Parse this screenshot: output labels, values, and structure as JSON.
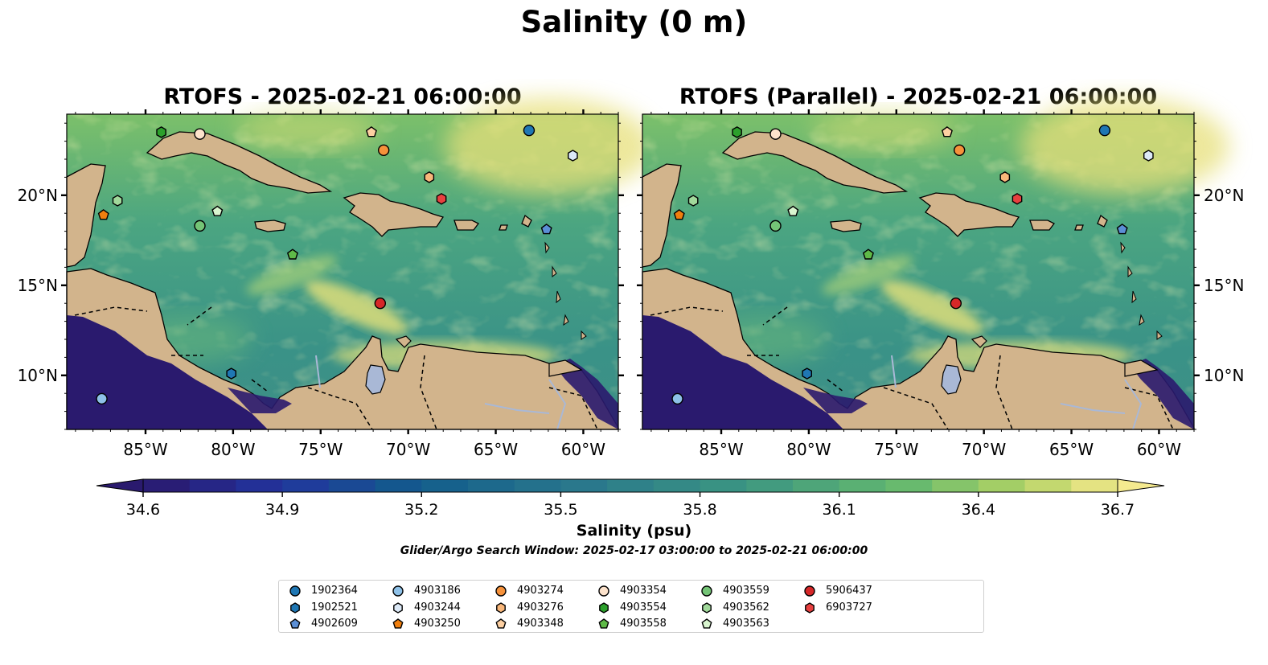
{
  "figure": {
    "title": "Salinity (0 m)",
    "panels": [
      {
        "title": "RTOFS - 2025-02-21 06:00:00"
      },
      {
        "title": "RTOFS (Parallel) - 2025-02-21 06:00:00"
      }
    ],
    "x_ticks": [
      "85°W",
      "80°W",
      "75°W",
      "70°W",
      "65°W",
      "60°W"
    ],
    "y_ticks": [
      "20°N",
      "15°N",
      "10°N"
    ],
    "colorbar": {
      "ticks": [
        "34.6",
        "34.9",
        "35.2",
        "35.5",
        "35.8",
        "36.1",
        "36.4",
        "36.7"
      ],
      "label": "Salinity (psu)",
      "subtitle": "Glider/Argo Search Window: 2025-02-17 03:00:00 to 2025-02-21 06:00:00"
    },
    "colors": {
      "land": "#d2b48c",
      "ocean_mid": "#3f9b86",
      "ocean_salty": "#f0e68c",
      "ocean_fresh": "#2a1a6e",
      "rivers": "#a9b8d6"
    }
  },
  "chart_data": {
    "type": "scatter",
    "map_type": "salinity contour map",
    "xlim": [
      -89.5,
      -58.0
    ],
    "ylim": [
      7.0,
      24.5
    ],
    "colorbar_range": [
      34.6,
      36.7
    ],
    "colorbar_step": 0.1,
    "colormap": "haline",
    "series": [
      {
        "name": "1902364",
        "marker": "circle",
        "color": "#1f77b4",
        "x": -63.1,
        "y": 23.6
      },
      {
        "name": "1902521",
        "marker": "hexagon",
        "color": "#1f77b4",
        "x": -80.1,
        "y": 10.1
      },
      {
        "name": "4902609",
        "marker": "pentagon",
        "color": "#5b8fd6",
        "x": -62.1,
        "y": 18.1
      },
      {
        "name": "4903186",
        "marker": "circle",
        "color": "#8ec1e8",
        "x": -87.5,
        "y": 8.7
      },
      {
        "name": "4903244",
        "marker": "hexagon",
        "color": "#dce9f7",
        "x": -60.6,
        "y": 22.2
      },
      {
        "name": "4903250",
        "marker": "pentagon",
        "color": "#f07f0e",
        "x": -87.4,
        "y": 18.9
      },
      {
        "name": "4903274",
        "marker": "circle",
        "color": "#f6923b",
        "x": -71.4,
        "y": 22.5
      },
      {
        "name": "4903276",
        "marker": "hexagon",
        "color": "#f9b77a",
        "x": -68.8,
        "y": 21.0
      },
      {
        "name": "4903348",
        "marker": "pentagon",
        "color": "#fdd0a2",
        "x": -72.1,
        "y": 23.5
      },
      {
        "name": "4903354",
        "marker": "circle",
        "color": "#fde3cc",
        "x": -81.9,
        "y": 23.4
      },
      {
        "name": "4903554",
        "marker": "hexagon",
        "color": "#2ca02c",
        "x": -84.1,
        "y": 23.5
      },
      {
        "name": "4903558",
        "marker": "pentagon",
        "color": "#5fba48",
        "x": -76.6,
        "y": 16.7
      },
      {
        "name": "4903559",
        "marker": "circle",
        "color": "#74c476",
        "x": -81.9,
        "y": 18.3
      },
      {
        "name": "4903562",
        "marker": "hexagon",
        "color": "#a1d99b",
        "x": -86.6,
        "y": 19.7
      },
      {
        "name": "4903563",
        "marker": "pentagon",
        "color": "#d9f5cf",
        "x": -80.9,
        "y": 19.1
      },
      {
        "name": "5906437",
        "marker": "circle",
        "color": "#d62728",
        "x": -71.6,
        "y": 14.0
      },
      {
        "name": "6903727",
        "marker": "hexagon",
        "color": "#e8403f",
        "x": -68.1,
        "y": 19.8
      }
    ]
  }
}
